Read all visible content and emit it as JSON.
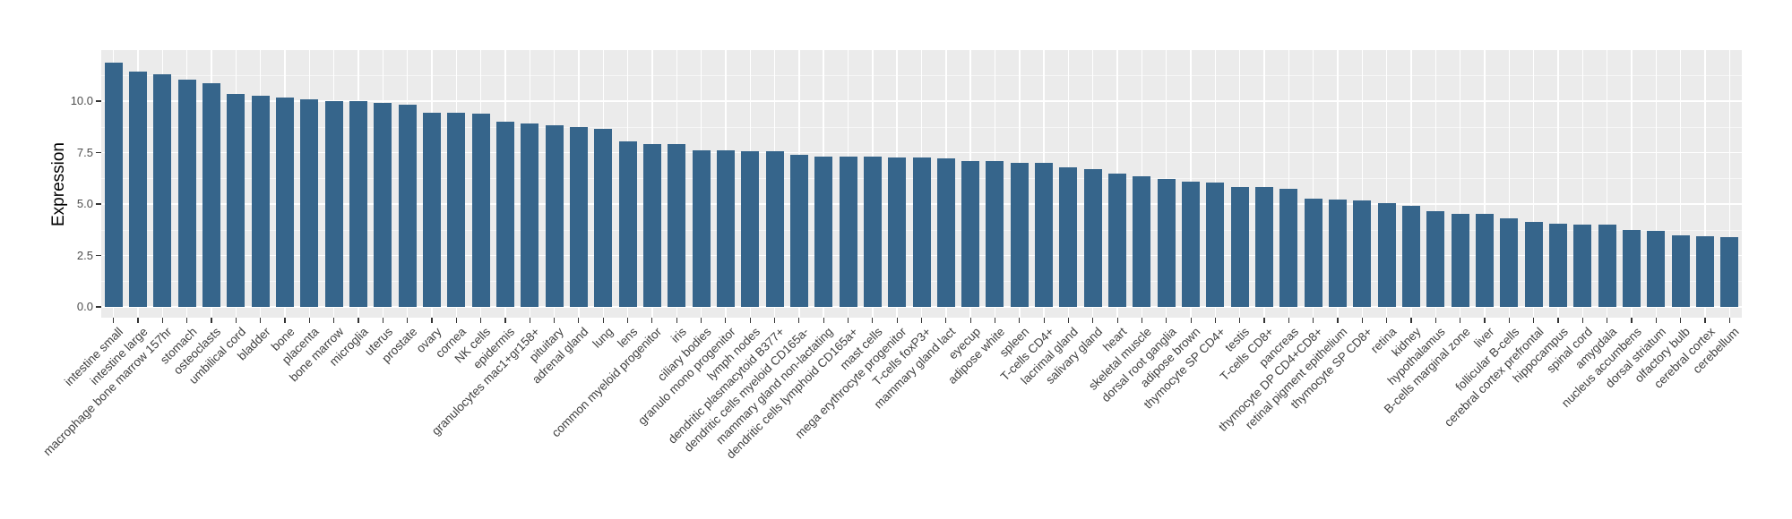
{
  "figure": {
    "background_color": "#ffffff",
    "panel_background_color": "#ebebeb",
    "gridline_color": "#ffffff",
    "bar_color": "#36658b",
    "tick_mark_color": "#333333",
    "axis_text_color": "#4d4d4d"
  },
  "chart_data": {
    "type": "bar",
    "title": "",
    "xlabel": "",
    "ylabel": "Expression",
    "ylim": [
      0,
      12.5
    ],
    "yticks": [
      0.0,
      2.5,
      5.0,
      7.5,
      10.0
    ],
    "ytick_labels": [
      "0.0",
      "2.5",
      "5.0",
      "7.5",
      "10.0"
    ],
    "grid": true,
    "legend": false,
    "bar_orientation": "vertical",
    "x_label_angle_deg": 45,
    "categories": [
      "intestine small",
      "intestine large",
      "macrophage bone marrow 157hr",
      "stomach",
      "osteoclasts",
      "umbilical cord",
      "bladder",
      "bone",
      "placenta",
      "bone marrow",
      "microglia",
      "uterus",
      "prostate",
      "ovary",
      "cornea",
      "NK cells",
      "epidermis",
      "granulocytes mac1+gr158+",
      "pituitary",
      "adrenal gland",
      "lung",
      "lens",
      "common myeloid progenitor",
      "iris",
      "ciliary bodies",
      "granulo mono progenitor",
      "lymph nodes",
      "dendritic plasmacytoid B377+",
      "dendritic cells myeloid CD165a-",
      "mammary gland non-lactating",
      "dendritic cells lymphoid CD165a+",
      "mast cells",
      "mega erythrocyte progenitor",
      "T-cells foxP3+",
      "mammary gland lact",
      "eyecup",
      "adipose white",
      "spleen",
      "T-cells CD4+",
      "lacrimal gland",
      "salivary gland",
      "heart",
      "skeletal muscle",
      "dorsal root ganglia",
      "adipose brown",
      "thymocyte SP CD4+",
      "testis",
      "T-cells CD8+",
      "pancreas",
      "thymocyte DP CD4+CD8+",
      "retinal pigment epithelium",
      "thymocyte SP CD8+",
      "retina",
      "kidney",
      "hypothalamus",
      "B-cells marginal zone",
      "liver",
      "follicular B-cells",
      "cerebral cortex prefrontal",
      "hippocampus",
      "spinal cord",
      "amygdala",
      "nucleus accumbens",
      "dorsal striatum",
      "olfactory bulb",
      "cerebral cortex",
      "cerebellum"
    ],
    "values": [
      11.88,
      11.43,
      11.32,
      11.03,
      10.88,
      10.35,
      10.26,
      10.17,
      10.09,
      10.02,
      10.0,
      9.93,
      9.83,
      9.45,
      9.44,
      9.38,
      9.0,
      8.9,
      8.82,
      8.72,
      8.64,
      8.04,
      7.93,
      7.91,
      7.62,
      7.6,
      7.58,
      7.56,
      7.38,
      7.32,
      7.31,
      7.3,
      7.27,
      7.26,
      7.2,
      7.09,
      7.07,
      7.02,
      7.0,
      6.77,
      6.68,
      6.46,
      6.33,
      6.2,
      6.1,
      6.06,
      5.83,
      5.81,
      5.74,
      5.26,
      5.2,
      5.16,
      5.03,
      4.91,
      4.64,
      4.52,
      4.51,
      4.3,
      4.12,
      4.06,
      4.01,
      4.0,
      3.75,
      3.71,
      3.49,
      3.43,
      3.4
    ]
  }
}
